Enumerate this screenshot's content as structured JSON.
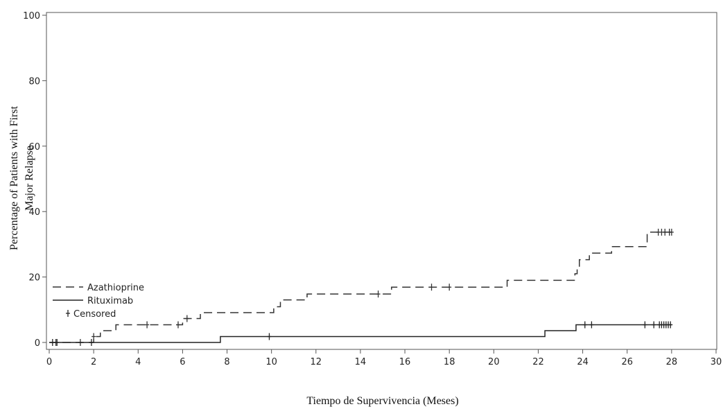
{
  "chart_data": {
    "type": "line",
    "title": "",
    "xlabel": "Tiempo de Supervivencia (Meses)",
    "ylabel_lines": [
      "Percentage of Patients with First",
      "Major Relapse"
    ],
    "xlim": [
      0,
      30
    ],
    "ylim": [
      0,
      100
    ],
    "x_ticks": [
      0,
      2,
      4,
      6,
      8,
      10,
      12,
      14,
      16,
      18,
      20,
      22,
      24,
      26,
      28,
      30
    ],
    "y_ticks": [
      0,
      20,
      40,
      60,
      80,
      100
    ],
    "grid": false,
    "legend_position": "lower-left",
    "legend": [
      {
        "label": "Azathioprine",
        "style": "dashed"
      },
      {
        "label": "Rituximab",
        "style": "solid"
      },
      {
        "label": "Censored",
        "style": "plus"
      }
    ],
    "series": [
      {
        "name": "Azathioprine",
        "style": "dashed",
        "color": "#333333",
        "steps": [
          [
            0,
            0
          ],
          [
            2.0,
            1.8
          ],
          [
            2.3,
            3.6
          ],
          [
            3.0,
            5.4
          ],
          [
            6.0,
            7.3
          ],
          [
            6.8,
            9.1
          ],
          [
            10.1,
            10.9
          ],
          [
            10.4,
            13.0
          ],
          [
            11.6,
            14.8
          ],
          [
            15.4,
            16.9
          ],
          [
            20.6,
            19.0
          ],
          [
            23.65,
            21.0
          ],
          [
            23.75,
            23.0
          ],
          [
            23.85,
            25.3
          ],
          [
            24.3,
            27.3
          ],
          [
            25.3,
            29.3
          ],
          [
            26.9,
            33.7
          ],
          [
            28.0,
            33.7
          ]
        ],
        "censored": [
          0.3,
          1.4,
          2.0,
          4.4,
          5.8,
          6.2,
          14.8,
          17.2,
          18.0,
          27.4,
          27.55,
          27.7,
          27.9,
          28.0
        ]
      },
      {
        "name": "Rituximab",
        "style": "solid",
        "color": "#222222",
        "steps": [
          [
            0,
            0
          ],
          [
            7.7,
            1.8
          ],
          [
            22.3,
            3.6
          ],
          [
            23.7,
            5.4
          ],
          [
            28.0,
            5.4
          ]
        ],
        "censored": [
          0.15,
          0.35,
          1.9,
          9.9,
          24.1,
          24.4,
          26.8,
          27.2,
          27.45,
          27.55,
          27.65,
          27.75,
          27.85,
          27.95
        ]
      }
    ]
  }
}
